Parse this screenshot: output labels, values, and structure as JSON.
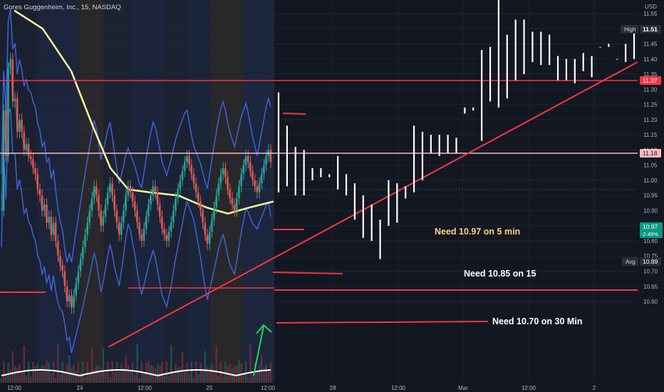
{
  "header": {
    "symbol_title": "Gores Guggenheim, Inc., 15, NASDAQ"
  },
  "price_axis": {
    "currency": "USD",
    "ticks": [
      "11.55",
      "11.50",
      "11.45",
      "11.40",
      "11.35",
      "11.30",
      "11.25",
      "11.20",
      "11.15",
      "11.10",
      "11.05",
      "11.00",
      "10.95",
      "10.90",
      "10.85",
      "10.80",
      "10.75",
      "10.70",
      "10.65",
      "10.60"
    ]
  },
  "time_axis": {
    "ticks": [
      "12:00",
      "24",
      "12:00",
      "25",
      "12:00",
      "28",
      "12:00",
      "Mar",
      "12:00",
      "2"
    ]
  },
  "price_badges": {
    "high": {
      "label": "High",
      "value": "11.51"
    },
    "line_1137": "11.37",
    "line_1118": "11.18",
    "current": {
      "value": "10.97",
      "change": "-2.49%"
    },
    "avg": {
      "label": "Avg",
      "value": "10.89"
    }
  },
  "annotations": {
    "need_5min": "Need 10.97 on 5 min",
    "need_15": "Need 10.85 on 15",
    "need_30": "Need 10.70 on 30 Min"
  },
  "colors": {
    "background": "#131722",
    "red_level": "#f23645",
    "pink_level": "#f8bbc1",
    "yellow_ma": "#fff59d",
    "blue_band": "#3d63d9",
    "arrow": "#1fd655",
    "current_badge": "#089981",
    "annotation_5min": "#ffd180",
    "projection_bars": "#ffffff"
  },
  "chart_data": {
    "type": "bar",
    "title": "Gores Guggenheim, Inc., 15, NASDAQ",
    "ylim": [
      10.575,
      11.6
    ],
    "horizontal_levels": [
      11.37,
      11.18,
      10.81,
      10.72
    ],
    "trendline": {
      "from": 10.67,
      "to": 11.41
    },
    "projected_ohlc_bars": [
      {
        "high": 11.29,
        "low": 10.96,
        "open": 11.29,
        "close": 10.96
      },
      {
        "high": 11.18,
        "low": 10.98
      },
      {
        "high": 11.11,
        "low": 10.95
      },
      {
        "high": 11.1,
        "low": 10.95
      },
      {
        "high": 11.04,
        "low": 11.0
      },
      {
        "high": 11.04,
        "low": 11.01
      },
      {
        "high": 11.02,
        "low": 11.01
      },
      {
        "high": 11.08,
        "low": 10.97
      },
      {
        "high": 11.02,
        "low": 10.95
      },
      {
        "high": 10.99,
        "low": 10.87
      },
      {
        "high": 10.95,
        "low": 10.81
      },
      {
        "high": 10.92,
        "low": 10.8
      },
      {
        "high": 10.87,
        "low": 10.74
      },
      {
        "high": 11.0,
        "low": 10.85
      },
      {
        "high": 10.99,
        "low": 10.86
      },
      {
        "high": 10.98,
        "low": 10.94
      },
      {
        "high": 11.18,
        "low": 10.96
      },
      {
        "high": 11.16,
        "low": 11.0
      },
      {
        "high": 11.15,
        "low": 11.09
      },
      {
        "high": 11.15,
        "low": 11.08
      },
      {
        "high": 11.15,
        "low": 11.09
      },
      {
        "high": 11.14,
        "low": 11.09
      },
      {
        "high": 11.24,
        "low": 11.22
      },
      {
        "high": 11.24,
        "low": 11.23
      },
      {
        "high": 11.43,
        "low": 11.13
      },
      {
        "high": 11.44,
        "low": 11.26
      },
      {
        "high": 11.6,
        "low": 11.24
      },
      {
        "high": 11.48,
        "low": 11.27
      },
      {
        "high": 11.53,
        "low": 11.33
      },
      {
        "high": 11.53,
        "low": 11.35
      },
      {
        "high": 11.49,
        "low": 11.39
      },
      {
        "high": 11.49,
        "low": 11.38
      },
      {
        "high": 11.48,
        "low": 11.38
      },
      {
        "high": 11.41,
        "low": 11.33
      },
      {
        "high": 11.4,
        "low": 11.33
      },
      {
        "high": 11.4,
        "low": 11.32
      },
      {
        "high": 11.42,
        "low": 11.36
      },
      {
        "high": 11.41,
        "low": 11.34
      },
      {
        "high": 11.44,
        "low": 11.44
      },
      {
        "high": 11.45,
        "low": 11.44
      },
      {
        "high": 11.4,
        "low": 11.4
      },
      {
        "high": 11.45,
        "low": 11.39
      },
      {
        "high": 11.49,
        "low": 11.4
      }
    ],
    "history_candles": [
      10.9,
      11.23,
      11.08,
      11.37,
      11.4,
      11.26,
      11.27,
      11.16,
      11.2,
      11.16,
      11.1,
      11.12,
      11.08,
      11.07,
      11.04,
      11.02,
      10.97,
      10.95,
      10.9,
      10.92,
      10.86,
      10.88,
      10.82,
      10.86,
      10.8,
      10.75,
      10.72,
      10.7,
      10.65,
      10.6,
      10.62,
      10.58,
      10.62,
      10.66,
      10.7,
      10.74,
      10.78,
      10.82,
      10.86,
      10.9,
      10.94,
      10.98,
      10.95,
      10.9,
      10.85,
      10.88,
      10.92,
      10.96,
      10.99,
      10.95,
      10.9,
      10.86,
      10.82,
      10.86,
      10.9,
      10.95,
      10.98,
      10.96,
      10.93,
      10.9,
      10.86,
      10.82,
      10.8,
      10.84,
      10.88,
      10.92,
      10.95,
      10.98,
      10.96,
      10.92,
      10.88,
      10.84,
      10.82,
      10.8,
      10.83,
      10.86,
      10.9,
      10.94,
      10.97,
      11.0,
      11.03,
      11.06,
      11.08,
      11.05,
      11.02,
      10.99,
      10.96,
      10.93,
      10.9,
      10.86,
      10.82,
      10.79,
      10.83,
      10.87,
      10.91,
      10.95,
      10.99,
      11.02,
      11.04,
      11.01,
      10.97,
      10.94,
      10.92,
      10.9,
      10.94,
      10.98,
      11.02,
      11.05,
      11.08,
      11.06,
      11.03,
      11.0,
      10.98,
      10.96,
      10.99,
      11.02,
      11.05,
      11.08,
      11.1,
      11.06
    ]
  }
}
